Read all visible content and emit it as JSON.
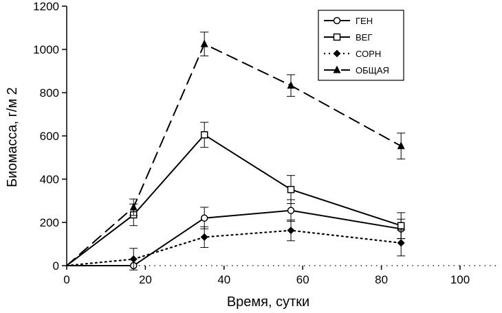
{
  "chart_data": {
    "type": "line",
    "title": "",
    "xlabel": "Время, сутки",
    "ylabel": "Биомасса, г/м  2",
    "xlim": [
      0,
      110
    ],
    "ylim": [
      0,
      1200
    ],
    "x_ticks": [
      0,
      20,
      40,
      60,
      80,
      100
    ],
    "y_ticks": [
      0,
      200,
      400,
      600,
      800,
      1000,
      1200
    ],
    "grid": false,
    "legend_position": "top-right",
    "series": [
      {
        "name": "ГЕН",
        "marker": "circle-open",
        "line": "solid",
        "points": [
          {
            "x": 0,
            "y": 0
          },
          {
            "x": 17,
            "y": 0
          },
          {
            "x": 35,
            "y": 220,
            "err": 50
          },
          {
            "x": 57,
            "y": 255,
            "err": 50
          },
          {
            "x": 85,
            "y": 170,
            "err": 45
          }
        ]
      },
      {
        "name": "ВЕГ",
        "marker": "square-open",
        "line": "solid",
        "points": [
          {
            "x": 0,
            "y": 0
          },
          {
            "x": 17,
            "y": 235,
            "err": 50
          },
          {
            "x": 35,
            "y": 605,
            "err": 58
          },
          {
            "x": 57,
            "y": 352,
            "err": 65
          },
          {
            "x": 85,
            "y": 185,
            "err": 60
          }
        ]
      },
      {
        "name": "СОРН",
        "marker": "diamond-filled",
        "line": "dotted",
        "points": [
          {
            "x": 0,
            "y": 0
          },
          {
            "x": 17,
            "y": 30,
            "err": 50
          },
          {
            "x": 35,
            "y": 132,
            "err": 48
          },
          {
            "x": 57,
            "y": 163,
            "err": 48
          },
          {
            "x": 85,
            "y": 105,
            "err": 60
          }
        ]
      },
      {
        "name": "ОБЩАЯ",
        "marker": "triangle-filled",
        "line": "dashed",
        "points": [
          {
            "x": 0,
            "y": 0
          },
          {
            "x": 17,
            "y": 270,
            "err": 38
          },
          {
            "x": 35,
            "y": 1025,
            "err": 55
          },
          {
            "x": 57,
            "y": 833,
            "err": 50
          },
          {
            "x": 85,
            "y": 553,
            "err": 60
          }
        ]
      }
    ]
  }
}
